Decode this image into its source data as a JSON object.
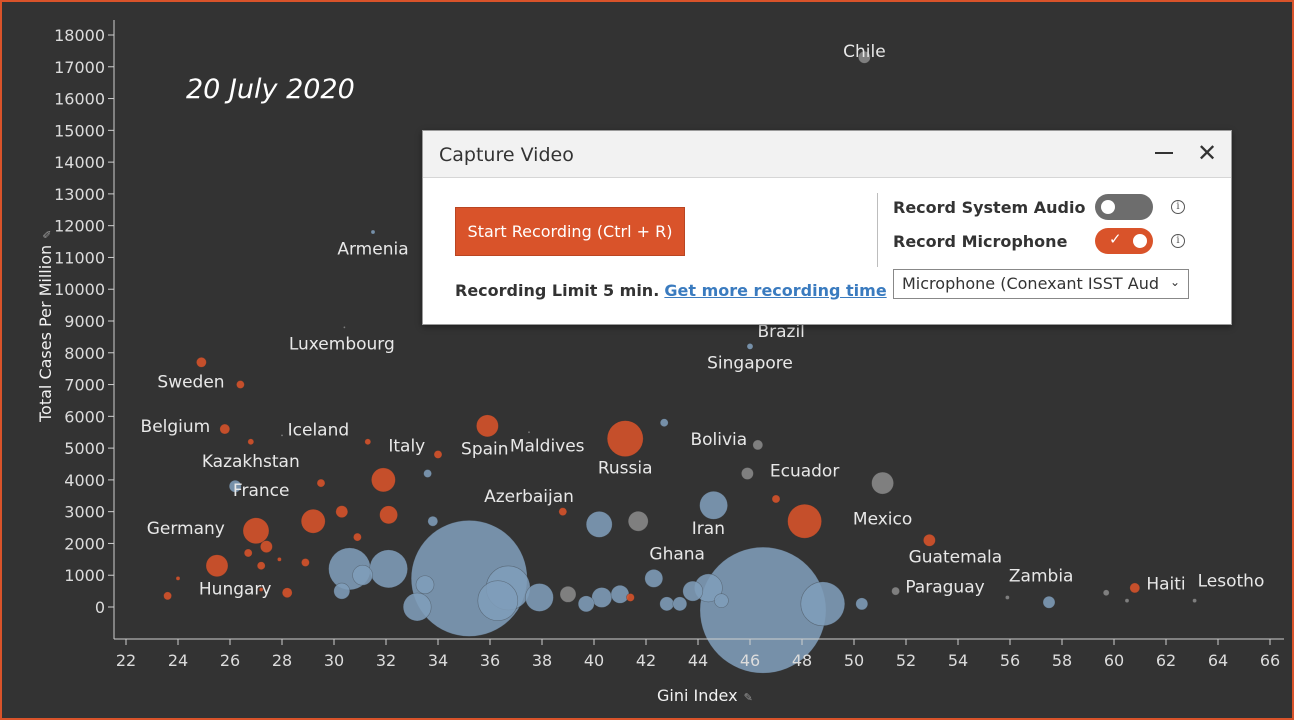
{
  "annotation_date": "20 July 2020",
  "x_axis_title": "Gini Index",
  "y_axis_title": "Total Cases Per Million",
  "colors": {
    "background": "#333333",
    "frame_border": "#d9532a",
    "orange": "#d9532a",
    "blue": "#7f9db9",
    "gray": "#8a8a8a",
    "axis": "#cfcfcf",
    "label": "#e8e8e8"
  },
  "dialog": {
    "title": "Capture Video",
    "minimize_icon": "minimize-icon",
    "close_icon": "close-icon",
    "close_glyph": "✕",
    "start_button": "Start Recording (Ctrl + R)",
    "recording_limit": "Recording Limit 5 min.",
    "more_time_link": "Get more recording time",
    "record_system_audio": "Record System Audio",
    "record_system_audio_on": false,
    "record_microphone": "Record Microphone",
    "record_microphone_on": true,
    "info_glyph": "i",
    "check_glyph": "✓",
    "microphone_select": "Microphone (Conexant ISST Aud",
    "select_chevron": "⌄"
  },
  "chart_data": {
    "type": "scatter",
    "xlabel": "Gini Index",
    "ylabel": "Total Cases Per Million",
    "xlim": [
      22,
      66
    ],
    "ylim": [
      -1000,
      18400
    ],
    "x_ticks": [
      22,
      24,
      26,
      28,
      30,
      32,
      34,
      36,
      38,
      40,
      42,
      44,
      46,
      48,
      50,
      52,
      54,
      56,
      58,
      60,
      62,
      64,
      66
    ],
    "y_ticks": [
      0,
      1000,
      2000,
      3000,
      4000,
      5000,
      6000,
      7000,
      8000,
      9000,
      10000,
      11000,
      12000,
      13000,
      14000,
      15000,
      16000,
      17000,
      18000
    ],
    "labels": [
      {
        "text": "Chile",
        "x": 50.4,
        "y": 17300
      },
      {
        "text": "Armenia",
        "x": 31.5,
        "y": 11100
      },
      {
        "text": "Brazil",
        "x": 47.2,
        "y": 8500
      },
      {
        "text": "Luxembourg",
        "x": 30.3,
        "y": 8100
      },
      {
        "text": "Singapore",
        "x": 46.0,
        "y": 7500
      },
      {
        "text": "Sweden",
        "x": 24.5,
        "y": 6900
      },
      {
        "text": "Belgium",
        "x": 23.9,
        "y": 5500
      },
      {
        "text": "Iceland",
        "x": 29.4,
        "y": 5400
      },
      {
        "text": "Italy",
        "x": 32.8,
        "y": 4900
      },
      {
        "text": "Spain",
        "x": 35.8,
        "y": 4800
      },
      {
        "text": "Maldives",
        "x": 38.2,
        "y": 4900
      },
      {
        "text": "Bolivia",
        "x": 44.8,
        "y": 5100
      },
      {
        "text": "Kazakhstan",
        "x": 26.8,
        "y": 4400
      },
      {
        "text": "Russia",
        "x": 41.2,
        "y": 4200
      },
      {
        "text": "Ecuador",
        "x": 48.1,
        "y": 4100
      },
      {
        "text": "France",
        "x": 27.2,
        "y": 3500
      },
      {
        "text": "Azerbaijan",
        "x": 37.5,
        "y": 3300
      },
      {
        "text": "Mexico",
        "x": 51.1,
        "y": 2600
      },
      {
        "text": "Germany",
        "x": 24.3,
        "y": 2300
      },
      {
        "text": "Iran",
        "x": 44.4,
        "y": 2300
      },
      {
        "text": "Ghana",
        "x": 43.2,
        "y": 1500
      },
      {
        "text": "Guatemala",
        "x": 53.9,
        "y": 1400
      },
      {
        "text": "Hungary",
        "x": 26.2,
        "y": 400
      },
      {
        "text": "Paraguay",
        "x": 53.5,
        "y": 450
      },
      {
        "text": "Zambia",
        "x": 57.2,
        "y": 800
      },
      {
        "text": "Haiti",
        "x": 62.0,
        "y": 550
      },
      {
        "text": "Lesotho",
        "x": 64.5,
        "y": 650
      }
    ],
    "points": [
      {
        "x": 50.4,
        "y": 17300,
        "r": 6,
        "c": "gray"
      },
      {
        "x": 31.5,
        "y": 11800,
        "r": 2,
        "c": "blue"
      },
      {
        "x": 46.0,
        "y": 8200,
        "r": 3,
        "c": "blue"
      },
      {
        "x": 30.4,
        "y": 8800,
        "r": 1,
        "c": "gray"
      },
      {
        "x": 24.9,
        "y": 7700,
        "r": 5,
        "c": "orange"
      },
      {
        "x": 26.4,
        "y": 7000,
        "r": 4,
        "c": "orange"
      },
      {
        "x": 25.8,
        "y": 5600,
        "r": 5,
        "c": "orange"
      },
      {
        "x": 26.8,
        "y": 5200,
        "r": 3,
        "c": "orange"
      },
      {
        "x": 28.0,
        "y": 5400,
        "r": 1,
        "c": "gray"
      },
      {
        "x": 31.3,
        "y": 5200,
        "r": 3,
        "c": "orange"
      },
      {
        "x": 34.0,
        "y": 4800,
        "r": 4,
        "c": "orange"
      },
      {
        "x": 33.6,
        "y": 4200,
        "r": 4,
        "c": "blue"
      },
      {
        "x": 35.9,
        "y": 5700,
        "r": 11,
        "c": "orange"
      },
      {
        "x": 37.5,
        "y": 5500,
        "r": 1,
        "c": "gray"
      },
      {
        "x": 42.7,
        "y": 5800,
        "r": 4,
        "c": "blue"
      },
      {
        "x": 41.2,
        "y": 5300,
        "r": 18,
        "c": "orange"
      },
      {
        "x": 46.3,
        "y": 5100,
        "r": 5,
        "c": "gray"
      },
      {
        "x": 45.9,
        "y": 4200,
        "r": 6,
        "c": "gray"
      },
      {
        "x": 26.2,
        "y": 3800,
        "r": 6,
        "c": "blue"
      },
      {
        "x": 29.5,
        "y": 3900,
        "r": 4,
        "c": "orange"
      },
      {
        "x": 31.9,
        "y": 4000,
        "r": 12,
        "c": "orange"
      },
      {
        "x": 47.0,
        "y": 3400,
        "r": 4,
        "c": "orange"
      },
      {
        "x": 51.1,
        "y": 3900,
        "r": 11,
        "c": "gray"
      },
      {
        "x": 30.3,
        "y": 3000,
        "r": 6,
        "c": "orange"
      },
      {
        "x": 29.2,
        "y": 2700,
        "r": 12,
        "c": "orange"
      },
      {
        "x": 27.0,
        "y": 2400,
        "r": 13,
        "c": "orange"
      },
      {
        "x": 32.1,
        "y": 2900,
        "r": 9,
        "c": "orange"
      },
      {
        "x": 33.8,
        "y": 2700,
        "r": 5,
        "c": "blue"
      },
      {
        "x": 38.8,
        "y": 3000,
        "r": 4,
        "c": "orange"
      },
      {
        "x": 40.2,
        "y": 2600,
        "r": 13,
        "c": "blue"
      },
      {
        "x": 41.7,
        "y": 2700,
        "r": 10,
        "c": "gray"
      },
      {
        "x": 44.6,
        "y": 3200,
        "r": 14,
        "c": "blue"
      },
      {
        "x": 48.1,
        "y": 2700,
        "r": 17,
        "c": "orange"
      },
      {
        "x": 52.9,
        "y": 2100,
        "r": 6,
        "c": "orange"
      },
      {
        "x": 27.4,
        "y": 1900,
        "r": 6,
        "c": "orange"
      },
      {
        "x": 26.7,
        "y": 1700,
        "r": 4,
        "c": "orange"
      },
      {
        "x": 27.2,
        "y": 1300,
        "r": 4,
        "c": "orange"
      },
      {
        "x": 25.5,
        "y": 1300,
        "r": 11,
        "c": "orange"
      },
      {
        "x": 30.9,
        "y": 2200,
        "r": 4,
        "c": "orange"
      },
      {
        "x": 28.9,
        "y": 1400,
        "r": 4,
        "c": "orange"
      },
      {
        "x": 30.6,
        "y": 1200,
        "r": 21,
        "c": "blue"
      },
      {
        "x": 32.1,
        "y": 1200,
        "r": 19,
        "c": "blue"
      },
      {
        "x": 31.1,
        "y": 1000,
        "r": 10,
        "c": "blue"
      },
      {
        "x": 30.3,
        "y": 500,
        "r": 8,
        "c": "blue"
      },
      {
        "x": 33.5,
        "y": 700,
        "r": 9,
        "c": "blue"
      },
      {
        "x": 33.2,
        "y": 0,
        "r": 14,
        "c": "blue"
      },
      {
        "x": 35.2,
        "y": 900,
        "r": 58,
        "c": "blue"
      },
      {
        "x": 36.7,
        "y": 600,
        "r": 22,
        "c": "blue"
      },
      {
        "x": 36.3,
        "y": 200,
        "r": 20,
        "c": "blue"
      },
      {
        "x": 37.9,
        "y": 300,
        "r": 14,
        "c": "blue"
      },
      {
        "x": 39.0,
        "y": 400,
        "r": 8,
        "c": "gray"
      },
      {
        "x": 39.7,
        "y": 100,
        "r": 8,
        "c": "blue"
      },
      {
        "x": 40.3,
        "y": 300,
        "r": 10,
        "c": "blue"
      },
      {
        "x": 41.0,
        "y": 400,
        "r": 9,
        "c": "blue"
      },
      {
        "x": 41.4,
        "y": 300,
        "r": 4,
        "c": "orange"
      },
      {
        "x": 42.3,
        "y": 900,
        "r": 9,
        "c": "blue"
      },
      {
        "x": 42.8,
        "y": 100,
        "r": 7,
        "c": "blue"
      },
      {
        "x": 43.3,
        "y": 100,
        "r": 7,
        "c": "blue"
      },
      {
        "x": 43.8,
        "y": 500,
        "r": 10,
        "c": "blue"
      },
      {
        "x": 44.4,
        "y": 600,
        "r": 14,
        "c": "blue"
      },
      {
        "x": 44.9,
        "y": 200,
        "r": 7,
        "c": "blue"
      },
      {
        "x": 46.5,
        "y": -100,
        "r": 63,
        "c": "blue"
      },
      {
        "x": 48.8,
        "y": 100,
        "r": 22,
        "c": "blue"
      },
      {
        "x": 50.3,
        "y": 100,
        "r": 6,
        "c": "blue"
      },
      {
        "x": 51.6,
        "y": 500,
        "r": 4,
        "c": "gray"
      },
      {
        "x": 57.5,
        "y": 150,
        "r": 6,
        "c": "blue"
      },
      {
        "x": 59.7,
        "y": 450,
        "r": 3,
        "c": "gray"
      },
      {
        "x": 60.8,
        "y": 600,
        "r": 5,
        "c": "orange"
      },
      {
        "x": 60.5,
        "y": 200,
        "r": 2,
        "c": "gray"
      },
      {
        "x": 63.1,
        "y": 200,
        "r": 2,
        "c": "gray"
      },
      {
        "x": 23.6,
        "y": 350,
        "r": 4,
        "c": "orange"
      },
      {
        "x": 24.0,
        "y": 900,
        "r": 2,
        "c": "orange"
      },
      {
        "x": 28.2,
        "y": 450,
        "r": 5,
        "c": "orange"
      },
      {
        "x": 27.2,
        "y": 550,
        "r": 2,
        "c": "orange"
      },
      {
        "x": 27.9,
        "y": 1500,
        "r": 2,
        "c": "orange"
      },
      {
        "x": 55.9,
        "y": 300,
        "r": 2,
        "c": "gray"
      }
    ]
  }
}
